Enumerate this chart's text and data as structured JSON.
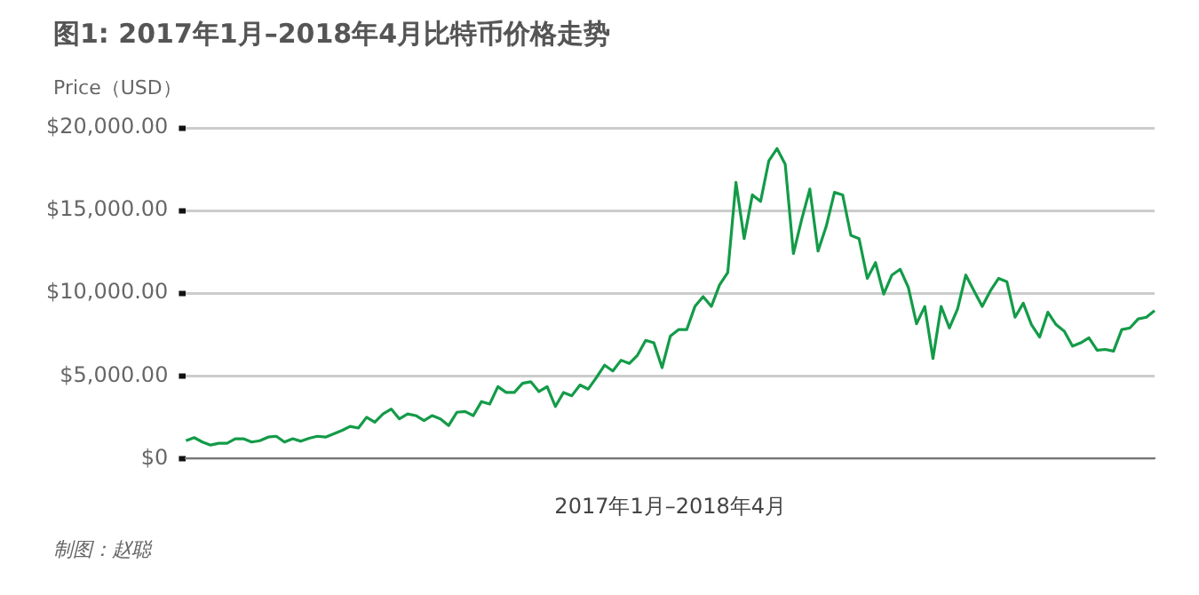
{
  "chart_data": {
    "type": "line",
    "title": "图1: 2017年1月–2018年4月比特币价格走势",
    "ylabel": "Price（USD）",
    "xlabel": "2017年1月–2018年4月",
    "annotations": [
      "制图：赵聪"
    ],
    "categories": [
      null,
      null,
      null,
      null,
      null,
      null,
      null,
      null,
      null,
      null,
      null,
      null,
      null,
      null,
      null,
      null,
      null,
      null,
      null,
      null,
      null,
      null,
      null,
      null,
      null,
      null,
      null,
      null,
      null,
      null,
      null,
      null,
      null,
      null,
      null,
      null,
      null,
      null,
      null,
      null,
      null,
      null,
      null,
      null,
      null,
      null,
      null,
      null,
      null,
      null,
      null,
      null,
      null,
      null,
      null,
      null,
      null,
      null,
      null,
      null,
      null,
      null,
      null,
      null,
      null,
      null,
      null,
      null,
      null,
      null,
      null,
      null,
      null,
      null,
      null,
      null,
      null,
      null,
      null,
      null,
      null,
      null,
      null,
      null,
      null,
      null,
      null,
      null,
      null,
      null,
      null,
      null,
      null,
      null,
      null,
      null,
      null,
      null,
      null,
      null,
      null,
      null,
      null,
      null,
      null,
      null,
      null,
      null,
      null,
      null,
      null,
      null,
      null,
      null,
      null,
      null,
      null,
      null,
      null
    ],
    "series": [
      {
        "color": "#139b48",
        "values": [
          1080,
          1270,
          1000,
          820,
          930,
          930,
          1200,
          1200,
          1000,
          1080,
          1300,
          1350,
          1000,
          1200,
          1050,
          1230,
          1350,
          1300,
          1500,
          1700,
          1950,
          1850,
          2500,
          2200,
          2700,
          3000,
          2400,
          2700,
          2600,
          2300,
          2600,
          2400,
          2000,
          2800,
          2850,
          2600,
          3450,
          3300,
          4350,
          4000,
          4000,
          4550,
          4650,
          4050,
          4350,
          3150,
          4000,
          3800,
          4450,
          4200,
          4900,
          5650,
          5300,
          5950,
          5750,
          6250,
          7150,
          7000,
          5500,
          7400,
          7800,
          7800,
          9200,
          9800,
          9200,
          10500,
          11250,
          16700,
          13300,
          15950,
          15550,
          18000,
          18750,
          17800,
          12400,
          14450,
          16300,
          12550,
          14050,
          16100,
          15950,
          13500,
          13300,
          10900,
          11850,
          9950,
          11100,
          11450,
          10350,
          8150,
          9200,
          6050,
          9200,
          7900,
          9050,
          11100,
          10150,
          9200,
          10150,
          10900,
          10700,
          8550,
          9400,
          8100,
          7350,
          8850,
          8100,
          7700,
          6800,
          7000,
          7300,
          6550,
          6600,
          6500,
          7800,
          7900,
          8450,
          8550,
          8950
        ]
      }
    ],
    "ylim": [
      0,
      20000
    ],
    "yticks": [
      {
        "value": 0,
        "label": "$0"
      },
      {
        "value": 5000,
        "label": "$5,000.00"
      },
      {
        "value": 10000,
        "label": "$10,000.00"
      },
      {
        "value": 15000,
        "label": "$15,000.00"
      },
      {
        "value": 20000,
        "label": "$20,000.00"
      }
    ],
    "grid": "y",
    "legend": false,
    "marker": "none",
    "line_style": "solid"
  }
}
